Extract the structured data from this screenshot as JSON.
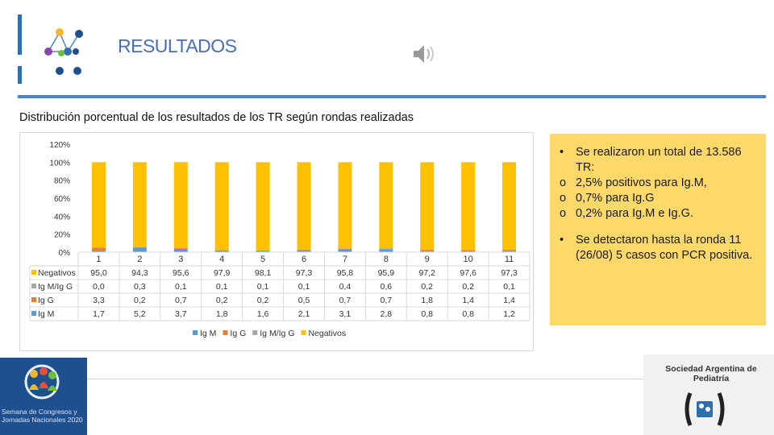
{
  "header": {
    "title": "RESULTADOS",
    "subtitle": "Distribución porcentual de los resultados de los TR según rondas realizadas"
  },
  "colors": {
    "accent": "#4a86c5",
    "Negativos": "#ffc000",
    "IgM/IgG": "#a5a5a5",
    "IgG": "#ed7d31",
    "IgM": "#5b9bd5",
    "notes_bg": "#fdd96a"
  },
  "chart_data": {
    "type": "bar",
    "stacked": true,
    "categories": [
      "1",
      "2",
      "3",
      "4",
      "5",
      "6",
      "7",
      "8",
      "9",
      "10",
      "11"
    ],
    "yticks": [
      "0%",
      "20%",
      "40%",
      "60%",
      "80%",
      "100%",
      "120%"
    ],
    "ylim": [
      0,
      120
    ],
    "xlabel": "",
    "ylabel": "",
    "legend_position": "bottom",
    "data_table": true,
    "series": [
      {
        "name": "Negativos",
        "color": "#ffc000",
        "values": [
          "95,0",
          "94,3",
          "95,6",
          "97,9",
          "98,1",
          "97,3",
          "95,8",
          "95,9",
          "97,2",
          "97,6",
          "97,3"
        ]
      },
      {
        "name": "Ig M/Ig G",
        "color": "#a5a5a5",
        "values": [
          "0,0",
          "0,3",
          "0,1",
          "0,1",
          "0,1",
          "0,1",
          "0,4",
          "0,6",
          "0,2",
          "0,2",
          "0,1"
        ]
      },
      {
        "name": "Ig G",
        "color": "#ed7d31",
        "values": [
          "3,3",
          "0,2",
          "0,7",
          "0,2",
          "0,2",
          "0,5",
          "0,7",
          "0,7",
          "1,8",
          "1,4",
          "1,4"
        ]
      },
      {
        "name": "Ig M",
        "color": "#5b9bd5",
        "values": [
          "1,7",
          "5,2",
          "3,7",
          "1,8",
          "1,6",
          "2,1",
          "3,1",
          "2,8",
          "0,8",
          "0,8",
          "1,2"
        ]
      }
    ],
    "legend": [
      "Ig M",
      "Ig G",
      "Ig M/Ig G",
      "Negativos"
    ]
  },
  "notes": {
    "bullet1": "Se realizaron un total de 13.586 TR:",
    "sub1": "2,5% positivos para Ig.M,",
    "sub2": "0,7% para Ig.G",
    "sub3": "0,2% para Ig.M e Ig.G.",
    "bullet2": "Se detectaron hasta la ronda 11 (26/08) 5 casos con PCR positiva.",
    "bullet_sym": "•",
    "sub_sym": "o"
  },
  "footer": {
    "event_text": "Semana de Congresos y Jornadas Nacionales 2020",
    "org_name": "Sociedad Argentina de Pediatría",
    "org_logo": "sap-logo"
  }
}
